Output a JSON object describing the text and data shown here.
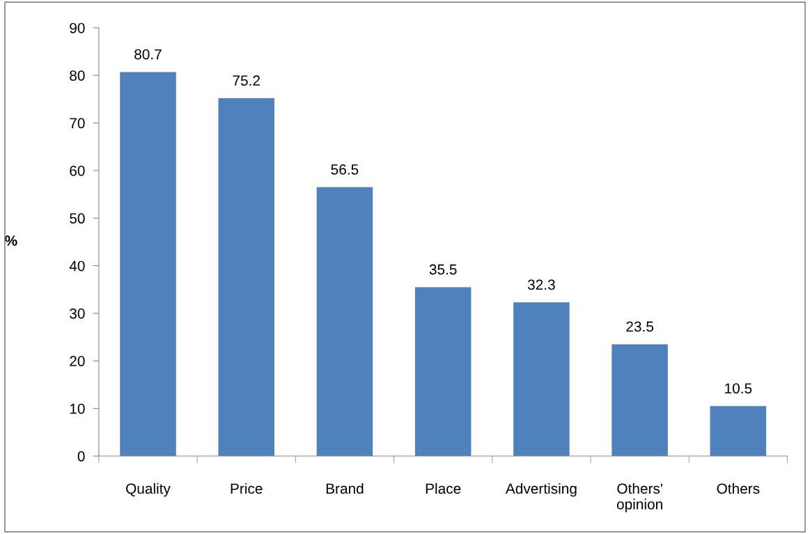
{
  "chart_data": {
    "type": "bar",
    "categories": [
      "Quality",
      "Price",
      "Brand",
      "Place",
      "Advertising",
      "Others' opinion",
      "Others"
    ],
    "values": [
      80.7,
      75.2,
      56.5,
      35.5,
      32.3,
      23.5,
      10.5
    ],
    "color": "#4f81bd",
    "ylabel": "%",
    "ylim": [
      0,
      90
    ],
    "yticks": [
      0,
      10,
      20,
      30,
      40,
      50,
      60,
      70,
      80,
      90
    ],
    "data_labels": true,
    "grid": false,
    "legend": false
  }
}
